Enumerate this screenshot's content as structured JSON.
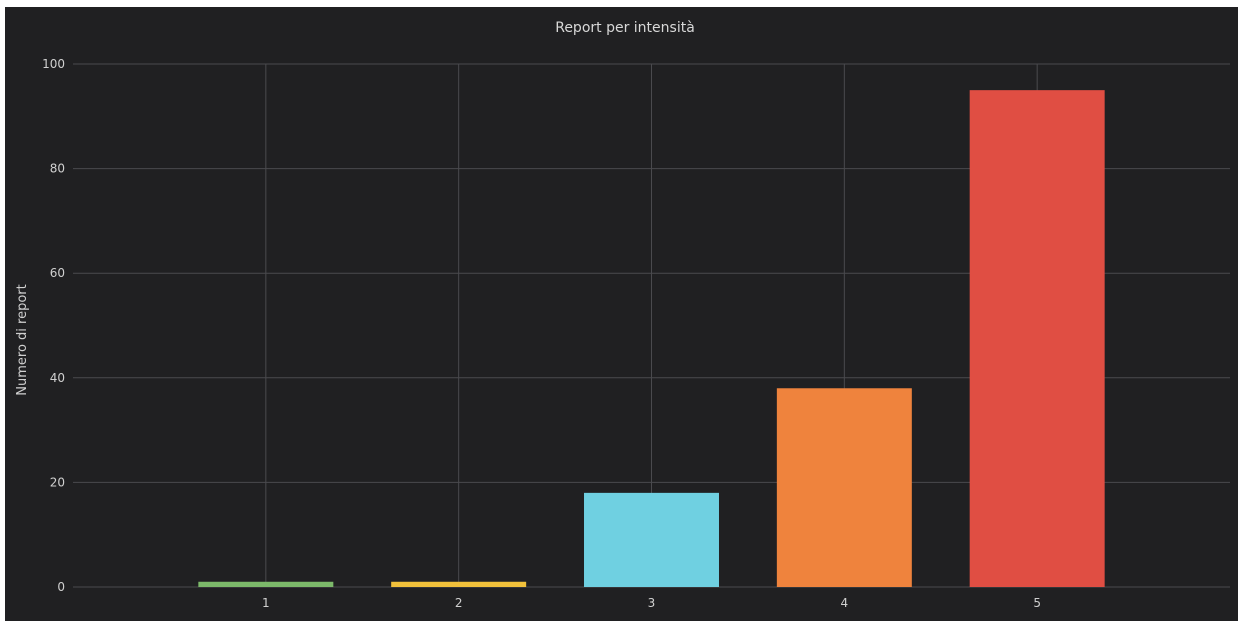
{
  "chart_data": {
    "type": "bar",
    "title": "Report per intensità",
    "xlabel": "",
    "ylabel": "Numero di report",
    "categories": [
      "1",
      "2",
      "3",
      "4",
      "5"
    ],
    "values": [
      1,
      1,
      18,
      38,
      95
    ],
    "colors": [
      "#7cb96a",
      "#f2c13b",
      "#6fd0e1",
      "#ef833d",
      "#e04e43"
    ],
    "ylim": [
      0,
      100
    ],
    "yticks": [
      "0",
      "20",
      "40",
      "60",
      "80",
      "100"
    ],
    "grid": true,
    "background": "#202022"
  }
}
